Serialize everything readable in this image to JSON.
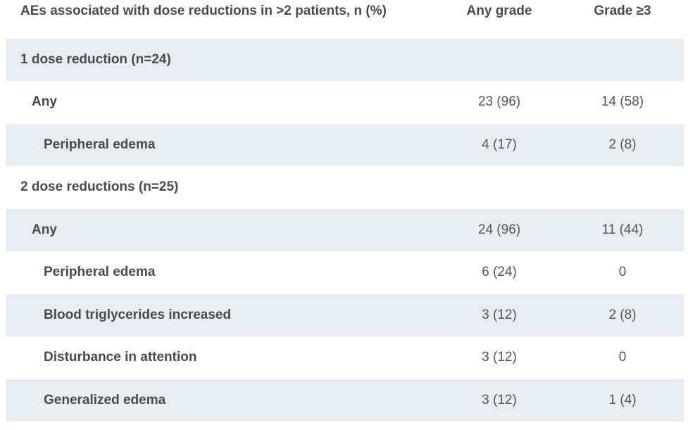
{
  "header": {
    "label": "AEs associated with dose reductions in >2 patients, n (%)",
    "any_grade": "Any grade",
    "grade3": "Grade ≥3"
  },
  "rows": [
    {
      "label": "1 dose reduction (n=24)",
      "any": "",
      "g3": ""
    },
    {
      "label": "Any",
      "any": "23 (96)",
      "g3": "14 (58)"
    },
    {
      "label": "Peripheral edema",
      "any": "4 (17)",
      "g3": "2 (8)"
    },
    {
      "label": "2 dose reductions (n=25)",
      "any": "",
      "g3": ""
    },
    {
      "label": "Any",
      "any": "24 (96)",
      "g3": "11 (44)"
    },
    {
      "label": "Peripheral edema",
      "any": "6 (24)",
      "g3": "0"
    },
    {
      "label": "Blood triglycerides increased",
      "any": "3 (12)",
      "g3": "2 (8)"
    },
    {
      "label": "Disturbance in attention",
      "any": "3 (12)",
      "g3": "0"
    },
    {
      "label": "Generalized edema",
      "any": "3 (12)",
      "g3": "1 (4)"
    }
  ]
}
